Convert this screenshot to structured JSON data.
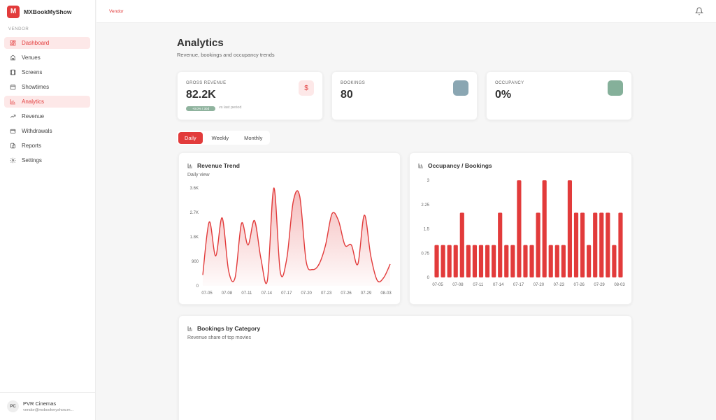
{
  "brand": {
    "logo_letter": "M",
    "name": "MXBookMyShow"
  },
  "sidebar": {
    "section_label": "VENDOR",
    "items": [
      {
        "label": "Dashboard",
        "icon": "dashboard-icon",
        "active": true
      },
      {
        "label": "Venues",
        "icon": "venue-icon",
        "active": false
      },
      {
        "label": "Screens",
        "icon": "film-icon",
        "active": false
      },
      {
        "label": "Showtimes",
        "icon": "calendar-icon",
        "active": false
      },
      {
        "label": "Analytics",
        "icon": "bar-chart-icon",
        "active": true
      },
      {
        "label": "Revenue",
        "icon": "trending-up-icon",
        "active": false
      },
      {
        "label": "Withdrawals",
        "icon": "wallet-icon",
        "active": false
      },
      {
        "label": "Reports",
        "icon": "document-icon",
        "active": false
      },
      {
        "label": "Settings",
        "icon": "gear-icon",
        "active": false
      }
    ]
  },
  "user": {
    "initials": "PC",
    "name": "PVR Cinemas",
    "email": "vendor@mxbookmyshow.m..."
  },
  "topbar": {
    "breadcrumb": "Vendor"
  },
  "page": {
    "title": "Analytics",
    "subtitle": "Revenue, bookings and occupancy trends"
  },
  "stats": [
    {
      "label": "GROSS REVENUE",
      "value": "82.2K",
      "icon": "dollar-icon",
      "icon_glyph": "$",
      "badge": "+0.0% / 30d",
      "trend_text": "vs last period"
    },
    {
      "label": "BOOKINGS",
      "value": "80",
      "icon": "ticket-icon"
    },
    {
      "label": "OCCUPANCY",
      "value": "0%",
      "icon": "percent-icon"
    }
  ],
  "tabs": [
    {
      "label": "Daily",
      "active": true
    },
    {
      "label": "Weekly",
      "active": false
    },
    {
      "label": "Monthly",
      "active": false
    }
  ],
  "colors": {
    "accent": "#e23b3b",
    "accent_light": "#fde8e8"
  },
  "bottom_card": {
    "title": "Bookings by Category",
    "subtitle": "Revenue share of top movies"
  },
  "chart_data": [
    {
      "type": "area",
      "title": "Revenue Trend",
      "subtitle": "Daily view",
      "y_ticks": [
        "3.6K",
        "2.7K",
        "1.8K",
        "900",
        "0"
      ],
      "ylim": [
        0,
        3600
      ],
      "x_tick_labels": [
        "07-05",
        "07-08",
        "07-11",
        "07-14",
        "07-17",
        "07-20",
        "07-23",
        "07-26",
        "07-29",
        "08-03"
      ],
      "values": [
        400,
        2350,
        1100,
        2500,
        550,
        300,
        2300,
        1500,
        2400,
        1000,
        200,
        3600,
        500,
        1000,
        3100,
        3300,
        900,
        600,
        800,
        1500,
        2650,
        2400,
        1500,
        1500,
        800,
        2600,
        1100,
        200,
        300,
        800
      ],
      "grid": false
    },
    {
      "type": "bar",
      "title": "Occupancy / Bookings",
      "y_ticks": [
        "3",
        "2.25",
        "1.5",
        "0.75",
        "0"
      ],
      "ylim": [
        0,
        3
      ],
      "x_tick_labels": [
        "07-05",
        "07-08",
        "07-11",
        "07-14",
        "07-17",
        "07-20",
        "07-23",
        "07-26",
        "07-29",
        "08-03"
      ],
      "values": [
        1,
        1,
        1,
        1,
        2,
        1,
        1,
        1,
        1,
        1,
        2,
        1,
        1,
        3,
        1,
        1,
        2,
        3,
        1,
        1,
        1,
        3,
        2,
        2,
        1,
        2,
        2,
        2,
        1,
        2
      ],
      "grid": false
    }
  ]
}
